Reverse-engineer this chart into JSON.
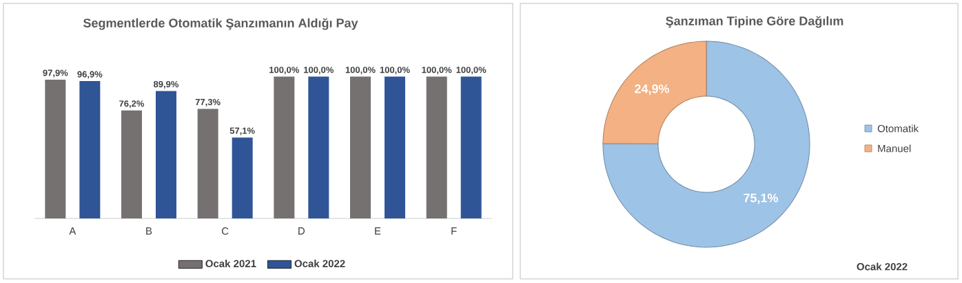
{
  "chart_data": [
    {
      "type": "bar",
      "title": "Segmentlerde Otomatik Şanzımanın Aldığı Pay",
      "categories": [
        "A",
        "B",
        "C",
        "D",
        "E",
        "F"
      ],
      "legend": "bottom",
      "series": [
        {
          "name": "Ocak 2021",
          "color": "#767171",
          "values": [
            97.9,
            76.2,
            77.3,
            100,
            100,
            100
          ],
          "value_labels": [
            "97,9%",
            "76,2%",
            "77,3%",
            "100,0%",
            "100,0%",
            "100,0%"
          ]
        },
        {
          "name": "Ocak 2022",
          "color": "#2f5597",
          "values": [
            96.9,
            89.9,
            57.1,
            100,
            100,
            100
          ],
          "value_labels": [
            "96,9%",
            "89,9%",
            "57,1%",
            "100,0%",
            "100,0%",
            "100,0%"
          ]
        }
      ]
    },
    {
      "type": "donut",
      "title": "Şanzıman Tipine Göre Dağılım",
      "categories": [
        "Otomatik",
        "Manuel"
      ],
      "values": [
        75.1,
        24.9
      ],
      "colors": [
        "#9dc3e6",
        "#f4b183"
      ],
      "value_labels": [
        "75,1%",
        "24,9%"
      ],
      "legend": "right",
      "annotations": [
        "Ocak 2022"
      ]
    }
  ]
}
